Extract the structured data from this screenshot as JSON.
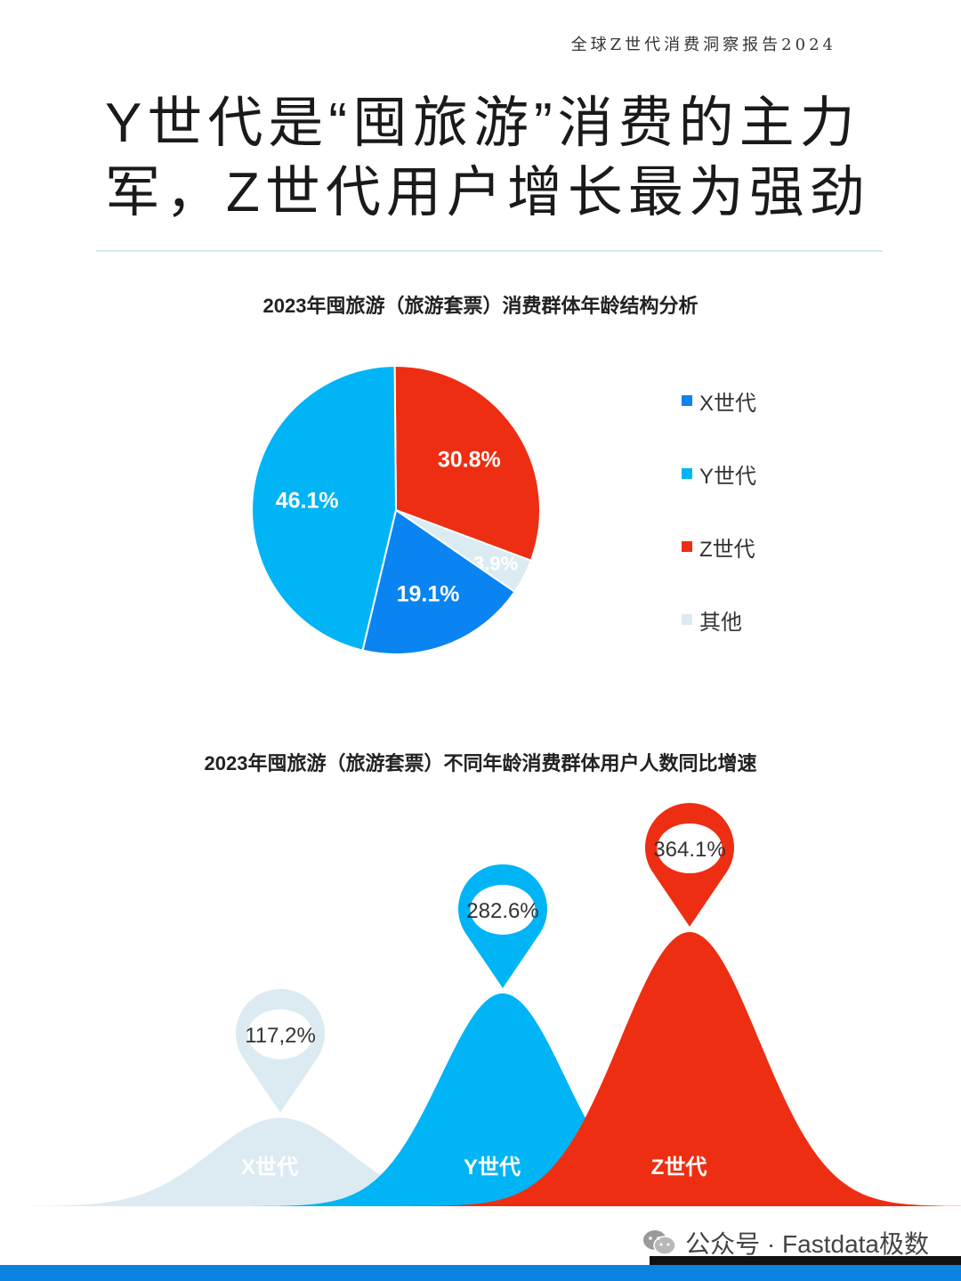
{
  "header": {
    "report_tag": "全球Z世代消费洞察报告2024",
    "headline_line1": "Y世代是“囤旅游”消费的主力",
    "headline_line2": "军，Z世代用户增长最为强劲"
  },
  "watermark": {
    "text": "公众号 · Fastdata极数",
    "icon": "wechat-icon"
  },
  "colors": {
    "x_gen": "#0a84f0",
    "y_gen": "#00b4f5",
    "z_gen": "#ee2e12",
    "other": "#dcebf2",
    "accent_bar": "#0a84e0"
  },
  "chart_data": [
    {
      "type": "pie",
      "title": "2023年囤旅游（旅游套票）消费群体年龄结构分析",
      "legend_position": "right",
      "slices": [
        {
          "name": "Z世代",
          "value": 30.8,
          "label": "30.8%",
          "color": "#ee2e12"
        },
        {
          "name": "其他",
          "value": 3.9,
          "label": "3.9%",
          "color": "#dcebf2"
        },
        {
          "name": "X世代",
          "value": 19.1,
          "label": "19.1%",
          "color": "#0a84f0"
        },
        {
          "name": "Y世代",
          "value": 46.1,
          "label": "46.1%",
          "color": "#00b4f5"
        }
      ],
      "legend": [
        "X世代",
        "Y世代",
        "Z世代",
        "其他"
      ]
    },
    {
      "type": "bar",
      "title": "2023年囤旅游（旅游套票）不同年龄消费群体用户人数同比增速",
      "categories": [
        "X世代",
        "Y世代",
        "Z世代"
      ],
      "values": [
        117.2,
        282.6,
        364.1
      ],
      "value_labels": [
        "117,2%",
        "282.6%",
        "364.1%"
      ],
      "colors": [
        "#dcebf2",
        "#00b4f5",
        "#ee2e12"
      ]
    }
  ]
}
